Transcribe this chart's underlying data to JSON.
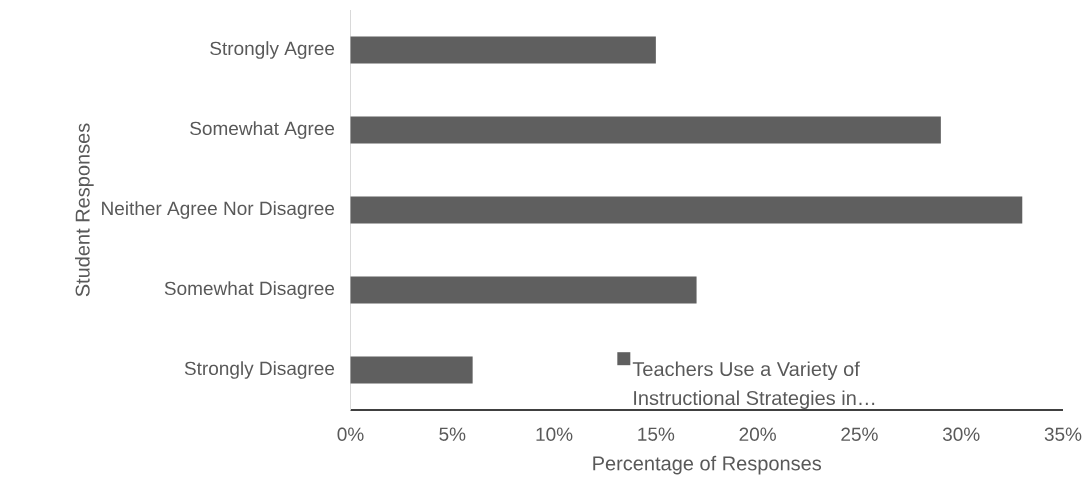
{
  "chart_data": {
    "type": "bar",
    "orientation": "horizontal",
    "xlabel": "Percentage of Responses",
    "ylabel": "Student Responses",
    "categories": [
      "Strongly Agree",
      "Somewhat Agree",
      "Neither Agree Nor Disagree",
      "Somewhat Disagree",
      "Strongly Disagree"
    ],
    "series": [
      {
        "name": "Teachers Use a Variety of Instructional Strategies in…",
        "color": "#5f5f5f",
        "values": [
          15,
          29,
          33,
          17,
          6
        ]
      }
    ],
    "xlim": [
      0,
      35
    ],
    "xticks": [
      {
        "value": 0,
        "label": "0%"
      },
      {
        "value": 5,
        "label": "5%"
      },
      {
        "value": 10,
        "label": "10%"
      },
      {
        "value": 15,
        "label": "15%"
      },
      {
        "value": 20,
        "label": "20%"
      },
      {
        "value": 25,
        "label": "25%"
      },
      {
        "value": 30,
        "label": "30%"
      },
      {
        "value": 35,
        "label": "35%"
      }
    ],
    "legend": "bottom"
  }
}
